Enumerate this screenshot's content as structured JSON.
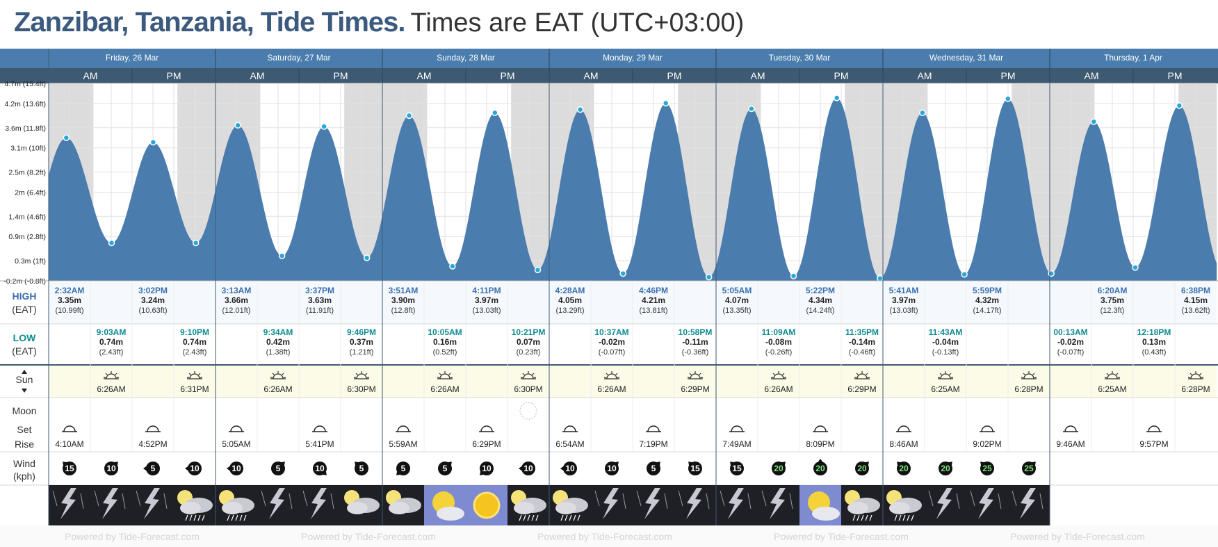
{
  "page": {
    "title_main": "Zanzibar, Tanzania, Tide Times.",
    "title_sub": "Times are EAT (UTC+03:00)"
  },
  "labels": {
    "am": "AM",
    "pm": "PM",
    "high": "HIGH",
    "low": "LOW",
    "eat": "(EAT)",
    "sun": "Sun",
    "moon": "Moon",
    "set": "Set",
    "rise": "Rise",
    "wind": "Wind",
    "kph": "(kph)",
    "watermark": "Powered by Tide-Forecast.com"
  },
  "colors": {
    "header_blue": "#4a7cad",
    "header_dark": "#3e5a73",
    "tide_fill": "#4a7cad",
    "point": "#29a8d8",
    "night": "#dcdcdc",
    "high_text": "#3b6fb0",
    "low_text": "#0e8b91",
    "sun_row": "#fbfbe7"
  },
  "days": [
    {
      "label": "Friday, 26 Mar",
      "date": "2021-03-26"
    },
    {
      "label": "Saturday, 27 Mar",
      "date": "2021-03-27"
    },
    {
      "label": "Sunday, 28 Mar",
      "date": "2021-03-28"
    },
    {
      "label": "Monday, 29 Mar",
      "date": "2021-03-29"
    },
    {
      "label": "Tuesday, 30 Mar",
      "date": "2021-03-30"
    },
    {
      "label": "Wednesday, 31 Mar",
      "date": "2021-03-31"
    },
    {
      "label": "Thursday, 1 Apr",
      "date": "2021-04-01"
    }
  ],
  "chart_data": {
    "type": "area",
    "title": "Zanzibar, Tanzania, Tide Times.",
    "ylabel": "",
    "y_ticks": [
      {
        "v": 4.7,
        "label": "4.7m (15.4ft)"
      },
      {
        "v": 4.2,
        "label": "4.2m (13.6ft)"
      },
      {
        "v": 3.6,
        "label": "3.6m (11.8ft)"
      },
      {
        "v": 3.1,
        "label": "3.1m (10ft)"
      },
      {
        "v": 2.5,
        "label": "2.5m (8.2ft)"
      },
      {
        "v": 2.0,
        "label": "2m (6.4ft)"
      },
      {
        "v": 1.4,
        "label": "1.4m (4.6ft)"
      },
      {
        "v": 0.9,
        "label": "0.9m (2.8ft)"
      },
      {
        "v": 0.3,
        "label": "0.3m (1ft)"
      },
      {
        "v": -0.2,
        "label": "-0.2m (-0.8ft)"
      }
    ],
    "ylim": [
      -0.2,
      4.7
    ],
    "series": [
      {
        "name": "Tide height",
        "points": [
          {
            "x": "2021-03-26 02:32",
            "y": 3.35
          },
          {
            "x": "2021-03-26 09:03",
            "y": 0.74
          },
          {
            "x": "2021-03-26 15:02",
            "y": 3.24
          },
          {
            "x": "2021-03-26 21:10",
            "y": 0.74
          },
          {
            "x": "2021-03-27 03:13",
            "y": 3.66
          },
          {
            "x": "2021-03-27 09:34",
            "y": 0.42
          },
          {
            "x": "2021-03-27 15:37",
            "y": 3.63
          },
          {
            "x": "2021-03-27 21:46",
            "y": 0.37
          },
          {
            "x": "2021-03-28 03:51",
            "y": 3.9
          },
          {
            "x": "2021-03-28 10:05",
            "y": 0.16
          },
          {
            "x": "2021-03-28 16:11",
            "y": 3.97
          },
          {
            "x": "2021-03-28 22:21",
            "y": 0.07
          },
          {
            "x": "2021-03-29 04:28",
            "y": 4.05
          },
          {
            "x": "2021-03-29 10:37",
            "y": -0.02
          },
          {
            "x": "2021-03-29 16:46",
            "y": 4.21
          },
          {
            "x": "2021-03-29 22:58",
            "y": -0.11
          },
          {
            "x": "2021-03-30 05:05",
            "y": 4.07
          },
          {
            "x": "2021-03-30 11:09",
            "y": -0.08
          },
          {
            "x": "2021-03-30 17:22",
            "y": 4.34
          },
          {
            "x": "2021-03-30 23:35",
            "y": -0.14
          },
          {
            "x": "2021-03-31 05:41",
            "y": 3.97
          },
          {
            "x": "2021-03-31 11:43",
            "y": -0.04
          },
          {
            "x": "2021-03-31 17:59",
            "y": 4.32
          },
          {
            "x": "2021-04-01 00:13",
            "y": -0.02
          },
          {
            "x": "2021-04-01 06:20",
            "y": 3.75
          },
          {
            "x": "2021-04-01 12:18",
            "y": 0.13
          },
          {
            "x": "2021-04-01 18:38",
            "y": 4.15
          }
        ]
      }
    ]
  },
  "highs": [
    {
      "day": 0,
      "time": "2:32AM",
      "m": "3.35m",
      "ft": "(10.99ft)"
    },
    {
      "day": 0,
      "time": "3:02PM",
      "m": "3.24m",
      "ft": "(10.63ft)"
    },
    {
      "day": 1,
      "time": "3:13AM",
      "m": "3.66m",
      "ft": "(12.01ft)"
    },
    {
      "day": 1,
      "time": "3:37PM",
      "m": "3.63m",
      "ft": "(11.91ft)"
    },
    {
      "day": 2,
      "time": "3:51AM",
      "m": "3.90m",
      "ft": "(12.8ft)"
    },
    {
      "day": 2,
      "time": "4:11PM",
      "m": "3.97m",
      "ft": "(13.03ft)"
    },
    {
      "day": 3,
      "time": "4:28AM",
      "m": "4.05m",
      "ft": "(13.29ft)"
    },
    {
      "day": 3,
      "time": "4:46PM",
      "m": "4.21m",
      "ft": "(13.81ft)"
    },
    {
      "day": 4,
      "time": "5:05AM",
      "m": "4.07m",
      "ft": "(13.35ft)"
    },
    {
      "day": 4,
      "time": "5:22PM",
      "m": "4.34m",
      "ft": "(14.24ft)"
    },
    {
      "day": 5,
      "time": "5:41AM",
      "m": "3.97m",
      "ft": "(13.03ft)"
    },
    {
      "day": 5,
      "time": "5:59PM",
      "m": "4.32m",
      "ft": "(14.17ft)"
    },
    {
      "day": 6,
      "time": "6:20AM",
      "m": "3.75m",
      "ft": "(12.3ft)"
    },
    {
      "day": 6,
      "time": "6:38PM",
      "m": "4.15m",
      "ft": "(13.62ft)"
    }
  ],
  "lows": [
    {
      "day": 0,
      "time": "9:03AM",
      "m": "0.74m",
      "ft": "(2.43ft)"
    },
    {
      "day": 0,
      "time": "9:10PM",
      "m": "0.74m",
      "ft": "(2.43ft)"
    },
    {
      "day": 1,
      "time": "9:34AM",
      "m": "0.42m",
      "ft": "(1.38ft)"
    },
    {
      "day": 1,
      "time": "9:46PM",
      "m": "0.37m",
      "ft": "(1.21ft)"
    },
    {
      "day": 2,
      "time": "10:05AM",
      "m": "0.16m",
      "ft": "(0.52ft)"
    },
    {
      "day": 2,
      "time": "10:21PM",
      "m": "0.07m",
      "ft": "(0.23ft)"
    },
    {
      "day": 3,
      "time": "10:37AM",
      "m": "-0.02m",
      "ft": "(-0.07ft)"
    },
    {
      "day": 3,
      "time": "10:58PM",
      "m": "-0.11m",
      "ft": "(-0.36ft)"
    },
    {
      "day": 4,
      "time": "11:09AM",
      "m": "-0.08m",
      "ft": "(-0.26ft)"
    },
    {
      "day": 4,
      "time": "11:35PM",
      "m": "-0.14m",
      "ft": "(-0.46ft)"
    },
    {
      "day": 5,
      "time": "11:43AM",
      "m": "-0.04m",
      "ft": "(-0.13ft)"
    },
    {
      "day": 6,
      "time": "00:13AM",
      "m": "-0.02m",
      "ft": "(-0.07ft)"
    },
    {
      "day": 6,
      "time": "12:18PM",
      "m": "0.13m",
      "ft": "(0.43ft)"
    }
  ],
  "sun": {
    "rise": [
      "6:26AM",
      "6:26AM",
      "6:26AM",
      "6:26AM",
      "6:26AM",
      "6:25AM",
      "6:25AM"
    ],
    "set": [
      "6:31PM",
      "6:30PM",
      "6:30PM",
      "6:29PM",
      "6:29PM",
      "6:28PM",
      "6:28PM"
    ]
  },
  "moon": {
    "am": [
      "4:10AM",
      "5:05AM",
      "5:59AM",
      "6:54AM",
      "7:49AM",
      "8:46AM",
      "9:46AM"
    ],
    "pm": [
      "4:52PM",
      "5:41PM",
      "6:29PM",
      "7:19PM",
      "8:09PM",
      "9:02PM",
      "9:57PM"
    ],
    "full_moon_day": 2
  },
  "wind": [
    {
      "speed": "15",
      "arrow": "up-left"
    },
    {
      "speed": "10",
      "arrow": "up-right"
    },
    {
      "speed": "5",
      "arrow": "left"
    },
    {
      "speed": "10",
      "arrow": "left"
    },
    {
      "speed": "10",
      "arrow": "left"
    },
    {
      "speed": "5",
      "arrow": "up-right"
    },
    {
      "speed": "10",
      "arrow": "down-right"
    },
    {
      "speed": "5",
      "arrow": "up-left"
    },
    {
      "speed": "5",
      "arrow": "down-left"
    },
    {
      "speed": "5",
      "arrow": "up-right"
    },
    {
      "speed": "10",
      "arrow": "down-left"
    },
    {
      "speed": "10",
      "arrow": "left"
    },
    {
      "speed": "10",
      "arrow": "left"
    },
    {
      "speed": "10",
      "arrow": "up-right"
    },
    {
      "speed": "5",
      "arrow": "up-right"
    },
    {
      "speed": "15",
      "arrow": "up-left"
    },
    {
      "speed": "15",
      "arrow": "up-left"
    },
    {
      "speed": "20",
      "arrow": "up-right"
    },
    {
      "speed": "20",
      "arrow": "up"
    },
    {
      "speed": "20",
      "arrow": "up-right"
    },
    {
      "speed": "20",
      "arrow": "up-left"
    },
    {
      "speed": "20",
      "arrow": "up-right"
    },
    {
      "speed": "25",
      "arrow": "up-left"
    },
    {
      "speed": "25",
      "arrow": "up-right"
    }
  ],
  "weather": [
    "storm",
    "storm",
    "storm",
    "cloud-rain",
    "cloud-rain",
    "storm",
    "storm",
    "partly-cloudy",
    "partly-cloudy",
    "sun-cloud",
    "sun",
    "cloud-rain",
    "cloud-rain",
    "storm",
    "storm",
    "storm",
    "storm",
    "storm",
    "sun-cloud",
    "cloud-rain",
    "cloud-rain",
    "storm",
    "storm",
    "storm"
  ]
}
